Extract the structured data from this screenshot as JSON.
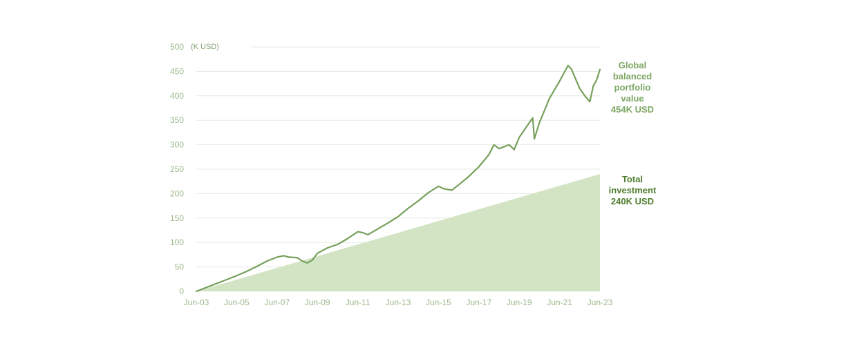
{
  "chart_data": {
    "type": "line",
    "unit_label": "(K USD)",
    "ylim": [
      0,
      500
    ],
    "yticks": [
      "0",
      "50",
      "100",
      "150",
      "200",
      "250",
      "300",
      "350",
      "400",
      "450",
      "500"
    ],
    "x_start": "Jun-03",
    "x_end": "Jun-23",
    "xticks": [
      "Jun-03",
      "Jun-05",
      "Jun-07",
      "Jun-09",
      "Jun-11",
      "Jun-13",
      "Jun-15",
      "Jun-17",
      "Jun-19",
      "Jun-21",
      "Jun-23"
    ],
    "grid": true,
    "colors": {
      "portfolio_line": "#76a05b",
      "investment_area": "#d3e4c5"
    },
    "series": [
      {
        "key": "portfolio",
        "type": "line",
        "points": [
          [
            "Jun-03",
            0
          ],
          [
            "Dec-03",
            8
          ],
          [
            "Jun-04",
            16
          ],
          [
            "Dec-04",
            24
          ],
          [
            "Jun-05",
            32
          ],
          [
            "Dec-05",
            41
          ],
          [
            "Jun-06",
            51
          ],
          [
            "Dec-06",
            62
          ],
          [
            "Jun-07",
            70
          ],
          [
            "Oct-07",
            73
          ],
          [
            "Jan-08",
            70
          ],
          [
            "Jun-08",
            69
          ],
          [
            "Sep-08",
            62
          ],
          [
            "Dec-08",
            58
          ],
          [
            "Mar-09",
            64
          ],
          [
            "Jun-09",
            78
          ],
          [
            "Dec-09",
            89
          ],
          [
            "Jun-10",
            96
          ],
          [
            "Dec-10",
            108
          ],
          [
            "Jun-11",
            122
          ],
          [
            "Sep-11",
            120
          ],
          [
            "Dec-11",
            116
          ],
          [
            "Jun-12",
            128
          ],
          [
            "Dec-12",
            140
          ],
          [
            "Jun-13",
            153
          ],
          [
            "Dec-13",
            170
          ],
          [
            "Jun-14",
            185
          ],
          [
            "Dec-14",
            202
          ],
          [
            "Jun-15",
            215
          ],
          [
            "Sep-15",
            210
          ],
          [
            "Feb-16",
            207
          ],
          [
            "Jun-16",
            218
          ],
          [
            "Dec-16",
            235
          ],
          [
            "Jun-17",
            255
          ],
          [
            "Dec-17",
            280
          ],
          [
            "Mar-18",
            300
          ],
          [
            "Jun-18",
            292
          ],
          [
            "Dec-18",
            300
          ],
          [
            "Mar-19",
            290
          ],
          [
            "Jun-19",
            315
          ],
          [
            "Dec-19",
            345
          ],
          [
            "Feb-20",
            355
          ],
          [
            "Mar-20",
            312
          ],
          [
            "Jun-20",
            345
          ],
          [
            "Dec-20",
            395
          ],
          [
            "Jun-21",
            430
          ],
          [
            "Nov-21",
            462
          ],
          [
            "Jan-22",
            455
          ],
          [
            "Jun-22",
            415
          ],
          [
            "Sep-22",
            400
          ],
          [
            "Dec-22",
            388
          ],
          [
            "Feb-23",
            420
          ],
          [
            "Apr-23",
            432
          ],
          [
            "Jun-23",
            454
          ]
        ]
      },
      {
        "key": "investment",
        "type": "area",
        "points": [
          [
            "Jun-03",
            0
          ],
          [
            "Jun-23",
            240
          ]
        ]
      }
    ],
    "annotations": {
      "portfolio": [
        "Global",
        "balanced",
        "portfolio",
        "value",
        "454K USD"
      ],
      "investment": [
        "Total",
        "investment",
        "240K USD"
      ]
    }
  }
}
